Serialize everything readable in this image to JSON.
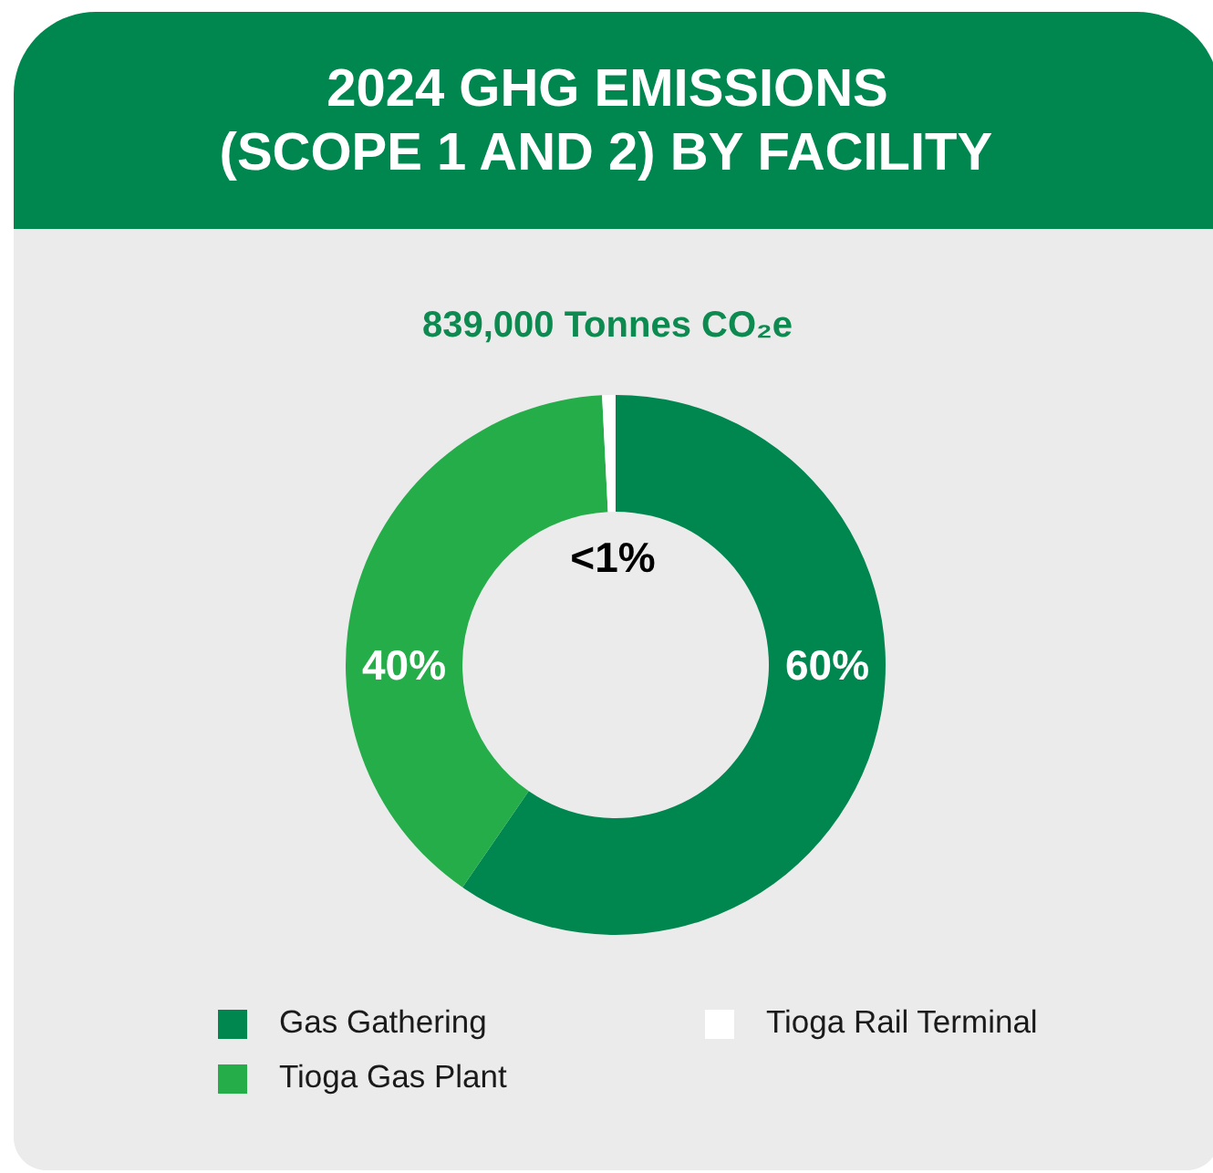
{
  "chart_data": {
    "type": "donut",
    "title": "2024 GHG EMISSIONS\n(SCOPE 1 AND 2) BY FACILITY",
    "subtitle": "839,000 Tonnes CO₂e",
    "categories": [
      "Gas Gathering",
      "Tioga Gas Plant",
      "Tioga Rail Terminal"
    ],
    "values": [
      59.6,
      39.6,
      0.8
    ],
    "colors": [
      "#00874f",
      "#25ad4a",
      "#ffffff"
    ],
    "value_labels": [
      "60%",
      "40%",
      "<1%"
    ],
    "legend": "bottom"
  }
}
